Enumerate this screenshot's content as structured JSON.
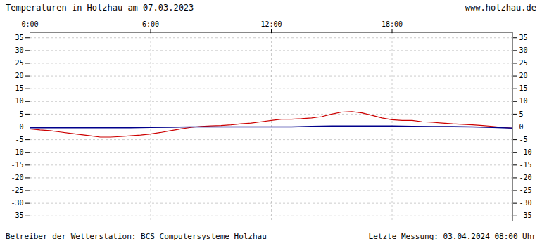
{
  "chart_data": {
    "type": "line",
    "title": "Temperaturen in Holzhau am 07.03.2023",
    "annotations": [
      "www.holzhau.de",
      "Betreiber der Wetterstation: BCS Computersysteme Holzhau",
      "Letzte Messung: 03.04.2024 08:00 Uhr"
    ],
    "xlim": [
      0,
      24
    ],
    "xticks": [
      {
        "value": 0,
        "label": "0:00"
      },
      {
        "value": 6,
        "label": "6:00"
      },
      {
        "value": 12,
        "label": "12:00"
      },
      {
        "value": 18,
        "label": "18:00"
      }
    ],
    "ylim": [
      -37,
      37
    ],
    "yticks": [
      -35,
      -30,
      -25,
      -20,
      -15,
      -10,
      -5,
      0,
      5,
      10,
      15,
      20,
      25,
      30,
      35
    ],
    "y2lim": [
      -37,
      37
    ],
    "y2ticks": [
      -35,
      -30,
      -25,
      -20,
      -15,
      -10,
      -5,
      0,
      5,
      10,
      15,
      20,
      25,
      30,
      35
    ],
    "grid": true,
    "series": [
      {
        "color": "#cc0000",
        "x": [
          0.0,
          0.5,
          1.0,
          1.5,
          2.0,
          2.5,
          3.0,
          3.5,
          4.0,
          4.5,
          5.0,
          5.5,
          6.0,
          6.5,
          7.0,
          7.5,
          8.0,
          8.5,
          9.0,
          9.5,
          10.0,
          10.5,
          11.0,
          11.5,
          12.0,
          12.5,
          13.0,
          13.5,
          14.0,
          14.5,
          15.0,
          15.5,
          16.0,
          16.5,
          17.0,
          17.5,
          18.0,
          18.5,
          19.0,
          19.5,
          20.0,
          20.5,
          21.0,
          21.5,
          22.0,
          22.5,
          23.0,
          23.5,
          24.0
        ],
        "values": [
          -0.8,
          -1.2,
          -1.5,
          -2.0,
          -2.5,
          -3.0,
          -3.5,
          -4.0,
          -4.0,
          -3.8,
          -3.5,
          -3.2,
          -2.8,
          -2.2,
          -1.5,
          -0.8,
          -0.2,
          0.2,
          0.4,
          0.5,
          0.8,
          1.2,
          1.5,
          2.0,
          2.5,
          3.0,
          3.0,
          3.2,
          3.5,
          4.0,
          5.0,
          5.8,
          6.0,
          5.5,
          4.5,
          3.5,
          2.8,
          2.5,
          2.5,
          2.0,
          1.8,
          1.5,
          1.2,
          1.0,
          0.8,
          0.5,
          0.2,
          -0.2,
          -0.5
        ]
      },
      {
        "color": "#00008b",
        "x": [
          0.0,
          1.0,
          2.0,
          3.0,
          4.0,
          5.0,
          6.0,
          7.0,
          8.0,
          9.0,
          10.0,
          11.0,
          12.0,
          13.0,
          14.0,
          15.0,
          16.0,
          17.0,
          18.0,
          19.0,
          20.0,
          21.0,
          22.0,
          23.0,
          24.0
        ],
        "values": [
          -0.3,
          -0.3,
          -0.3,
          -0.3,
          -0.3,
          -0.3,
          -0.2,
          -0.1,
          0.0,
          0.0,
          0.0,
          0.0,
          0.0,
          0.0,
          0.2,
          0.3,
          0.3,
          0.3,
          0.3,
          0.2,
          0.1,
          0.1,
          0.0,
          -0.2,
          -0.5
        ]
      }
    ]
  }
}
